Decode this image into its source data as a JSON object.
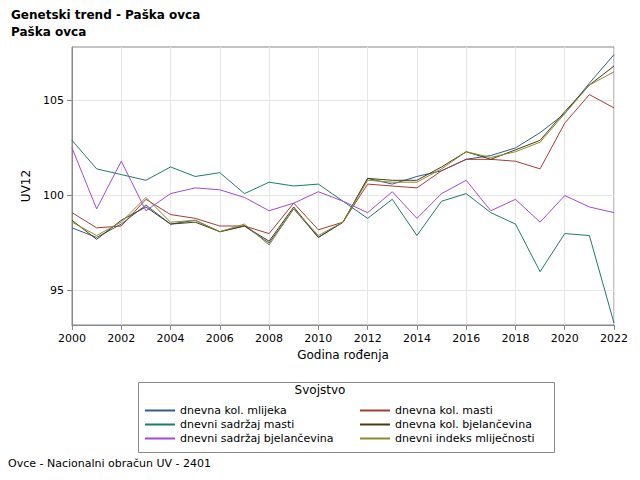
{
  "chart_data": {
    "type": "line",
    "title": "Genetski trend - Paška ovca",
    "subtitle": "Paška ovca",
    "x_label": "Godina rođenja",
    "y_label": "UV12",
    "legend_title": "Svojstvo",
    "footnote": "Ovce - Nacionalni obračun UV - 2401",
    "legend": "bottom",
    "grid": true,
    "marker": "none",
    "x": [
      2000,
      2001,
      2002,
      2003,
      2004,
      2005,
      2006,
      2007,
      2008,
      2009,
      2010,
      2011,
      2012,
      2013,
      2014,
      2015,
      2016,
      2017,
      2018,
      2019,
      2020,
      2021,
      2022
    ],
    "xlim": [
      2000,
      2022
    ],
    "xticks": [
      2000,
      2002,
      2004,
      2006,
      2008,
      2010,
      2012,
      2014,
      2016,
      2018,
      2020,
      2022
    ],
    "ylim": [
      93.2,
      107.8
    ],
    "yticks": [
      95,
      100,
      105
    ],
    "series": [
      {
        "name": "dnevna kol. mlijeka",
        "color": "#2E5F86",
        "values": [
          98.3,
          97.8,
          98.5,
          99.5,
          98.5,
          98.7,
          98.1,
          98.4,
          97.5,
          99.3,
          97.8,
          98.6,
          100.9,
          100.6,
          101.0,
          101.3,
          101.9,
          102.1,
          102.5,
          103.3,
          104.3,
          105.9,
          107.4
        ]
      },
      {
        "name": "dnevna kol. masti",
        "color": "#A43C33",
        "values": [
          99.1,
          98.3,
          98.4,
          99.8,
          99.0,
          98.8,
          98.4,
          98.4,
          98.0,
          99.6,
          98.2,
          98.6,
          100.6,
          100.5,
          100.4,
          101.3,
          101.9,
          101.9,
          101.8,
          101.4,
          103.8,
          105.3,
          104.6
        ]
      },
      {
        "name": "dnevni sadržaj masti",
        "color": "#1E7A6C",
        "values": [
          102.9,
          101.4,
          101.1,
          100.8,
          101.5,
          101.0,
          101.2,
          100.1,
          100.7,
          100.5,
          100.6,
          99.7,
          98.8,
          99.8,
          97.9,
          99.7,
          100.1,
          99.1,
          98.5,
          96.0,
          98.0,
          97.9,
          93.3
        ]
      },
      {
        "name": "dnevna kol. bjelančevina",
        "color": "#4A3A12",
        "values": [
          98.7,
          97.7,
          98.7,
          99.4,
          98.5,
          98.6,
          98.1,
          98.4,
          97.6,
          99.4,
          97.8,
          98.6,
          100.9,
          100.8,
          100.8,
          101.5,
          102.3,
          101.9,
          102.4,
          102.9,
          104.4,
          105.8,
          106.8
        ]
      },
      {
        "name": "dnevni sadržaj bjelančevina",
        "color": "#A547DC",
        "values": [
          102.5,
          99.3,
          101.8,
          99.2,
          100.1,
          100.4,
          100.3,
          99.9,
          99.2,
          99.6,
          100.2,
          99.7,
          99.1,
          100.2,
          98.8,
          100.1,
          100.8,
          99.2,
          99.8,
          98.6,
          100.0,
          99.4,
          99.1
        ]
      },
      {
        "name": "dnevni indeks mliječnosti",
        "color": "#8C8A30",
        "values": [
          98.6,
          97.9,
          98.6,
          99.9,
          98.6,
          98.7,
          98.1,
          98.5,
          97.4,
          99.3,
          97.9,
          98.6,
          100.8,
          100.7,
          100.7,
          101.4,
          102.3,
          102.0,
          102.3,
          102.8,
          104.3,
          105.8,
          106.5
        ]
      }
    ]
  }
}
